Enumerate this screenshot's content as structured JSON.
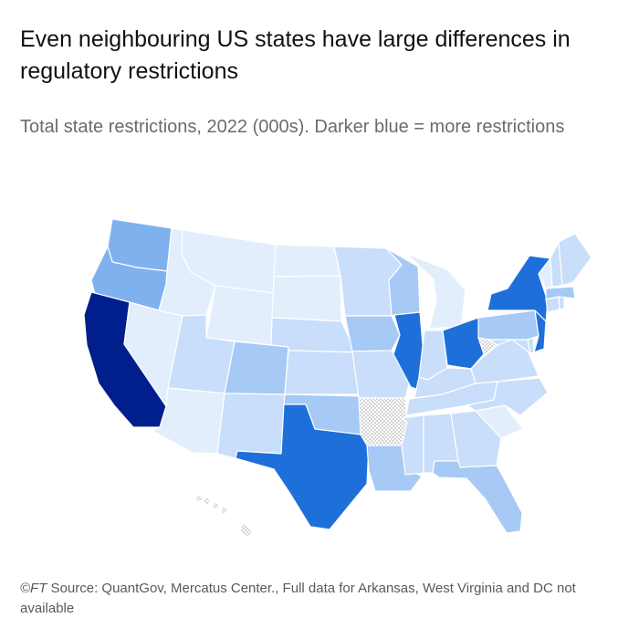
{
  "title": "Even neighbouring US states have large differences in regulatory restrictions",
  "subtitle": "Total state restrictions, 2022 (000s). Darker blue = more restrictions",
  "footer": {
    "prefix": "©FT",
    "text": " Source: QuantGov, Mercatus Center., Full data for Arkansas, West Virginia and DC not available"
  },
  "colors": {
    "level_1": "#e3eefc",
    "level_2": "#c8defa",
    "level_3": "#a6c9f5",
    "level_4": "#7fb1ef",
    "level_5": "#3a87e4",
    "level_6": "#1f6fda",
    "level_7": "#001f8c",
    "no_data": "#dcdcdc"
  },
  "legend": {
    "scale_note": "Darker blue = more restrictions",
    "unit": "000s"
  },
  "states": [
    {
      "name": "Washington",
      "abbr": "WA",
      "level": 4
    },
    {
      "name": "Oregon",
      "abbr": "OR",
      "level": 4
    },
    {
      "name": "California",
      "abbr": "CA",
      "level": 7
    },
    {
      "name": "Nevada",
      "abbr": "NV",
      "level": 1
    },
    {
      "name": "Idaho",
      "abbr": "ID",
      "level": 1
    },
    {
      "name": "Montana",
      "abbr": "MT",
      "level": 1
    },
    {
      "name": "Wyoming",
      "abbr": "WY",
      "level": 1
    },
    {
      "name": "Utah",
      "abbr": "UT",
      "level": 2
    },
    {
      "name": "Arizona",
      "abbr": "AZ",
      "level": 1
    },
    {
      "name": "Colorado",
      "abbr": "CO",
      "level": 3
    },
    {
      "name": "New Mexico",
      "abbr": "NM",
      "level": 2
    },
    {
      "name": "North Dakota",
      "abbr": "ND",
      "level": 1
    },
    {
      "name": "South Dakota",
      "abbr": "SD",
      "level": 1
    },
    {
      "name": "Nebraska",
      "abbr": "NE",
      "level": 2
    },
    {
      "name": "Kansas",
      "abbr": "KS",
      "level": 2
    },
    {
      "name": "Oklahoma",
      "abbr": "OK",
      "level": 3
    },
    {
      "name": "Texas",
      "abbr": "TX",
      "level": 6
    },
    {
      "name": "Minnesota",
      "abbr": "MN",
      "level": 2
    },
    {
      "name": "Iowa",
      "abbr": "IA",
      "level": 3
    },
    {
      "name": "Missouri",
      "abbr": "MO",
      "level": 2
    },
    {
      "name": "Arkansas",
      "abbr": "AR",
      "level": 0
    },
    {
      "name": "Louisiana",
      "abbr": "LA",
      "level": 3
    },
    {
      "name": "Wisconsin",
      "abbr": "WI",
      "level": 3
    },
    {
      "name": "Illinois",
      "abbr": "IL",
      "level": 6
    },
    {
      "name": "Michigan",
      "abbr": "MI",
      "level": 1
    },
    {
      "name": "Indiana",
      "abbr": "IN",
      "level": 2
    },
    {
      "name": "Ohio",
      "abbr": "OH",
      "level": 6
    },
    {
      "name": "Kentucky",
      "abbr": "KY",
      "level": 2
    },
    {
      "name": "Tennessee",
      "abbr": "TN",
      "level": 2
    },
    {
      "name": "Mississippi",
      "abbr": "MS",
      "level": 2
    },
    {
      "name": "Alabama",
      "abbr": "AL",
      "level": 2
    },
    {
      "name": "Georgia",
      "abbr": "GA",
      "level": 2
    },
    {
      "name": "Florida",
      "abbr": "FL",
      "level": 3
    },
    {
      "name": "South Carolina",
      "abbr": "SC",
      "level": 1
    },
    {
      "name": "North Carolina",
      "abbr": "NC",
      "level": 2
    },
    {
      "name": "Virginia",
      "abbr": "VA",
      "level": 2
    },
    {
      "name": "West Virginia",
      "abbr": "WV",
      "level": 0
    },
    {
      "name": "Maryland",
      "abbr": "MD",
      "level": 2
    },
    {
      "name": "Delaware",
      "abbr": "DE",
      "level": 2
    },
    {
      "name": "Pennsylvania",
      "abbr": "PA",
      "level": 3
    },
    {
      "name": "New Jersey",
      "abbr": "NJ",
      "level": 6
    },
    {
      "name": "New York",
      "abbr": "NY",
      "level": 6
    },
    {
      "name": "Connecticut",
      "abbr": "CT",
      "level": 2
    },
    {
      "name": "Rhode Island",
      "abbr": "RI",
      "level": 2
    },
    {
      "name": "Massachusetts",
      "abbr": "MA",
      "level": 3
    },
    {
      "name": "Vermont",
      "abbr": "VT",
      "level": 1
    },
    {
      "name": "New Hampshire",
      "abbr": "NH",
      "level": 2
    },
    {
      "name": "Maine",
      "abbr": "ME",
      "level": 2
    },
    {
      "name": "Hawaii",
      "abbr": "HI",
      "level": 0
    }
  ]
}
